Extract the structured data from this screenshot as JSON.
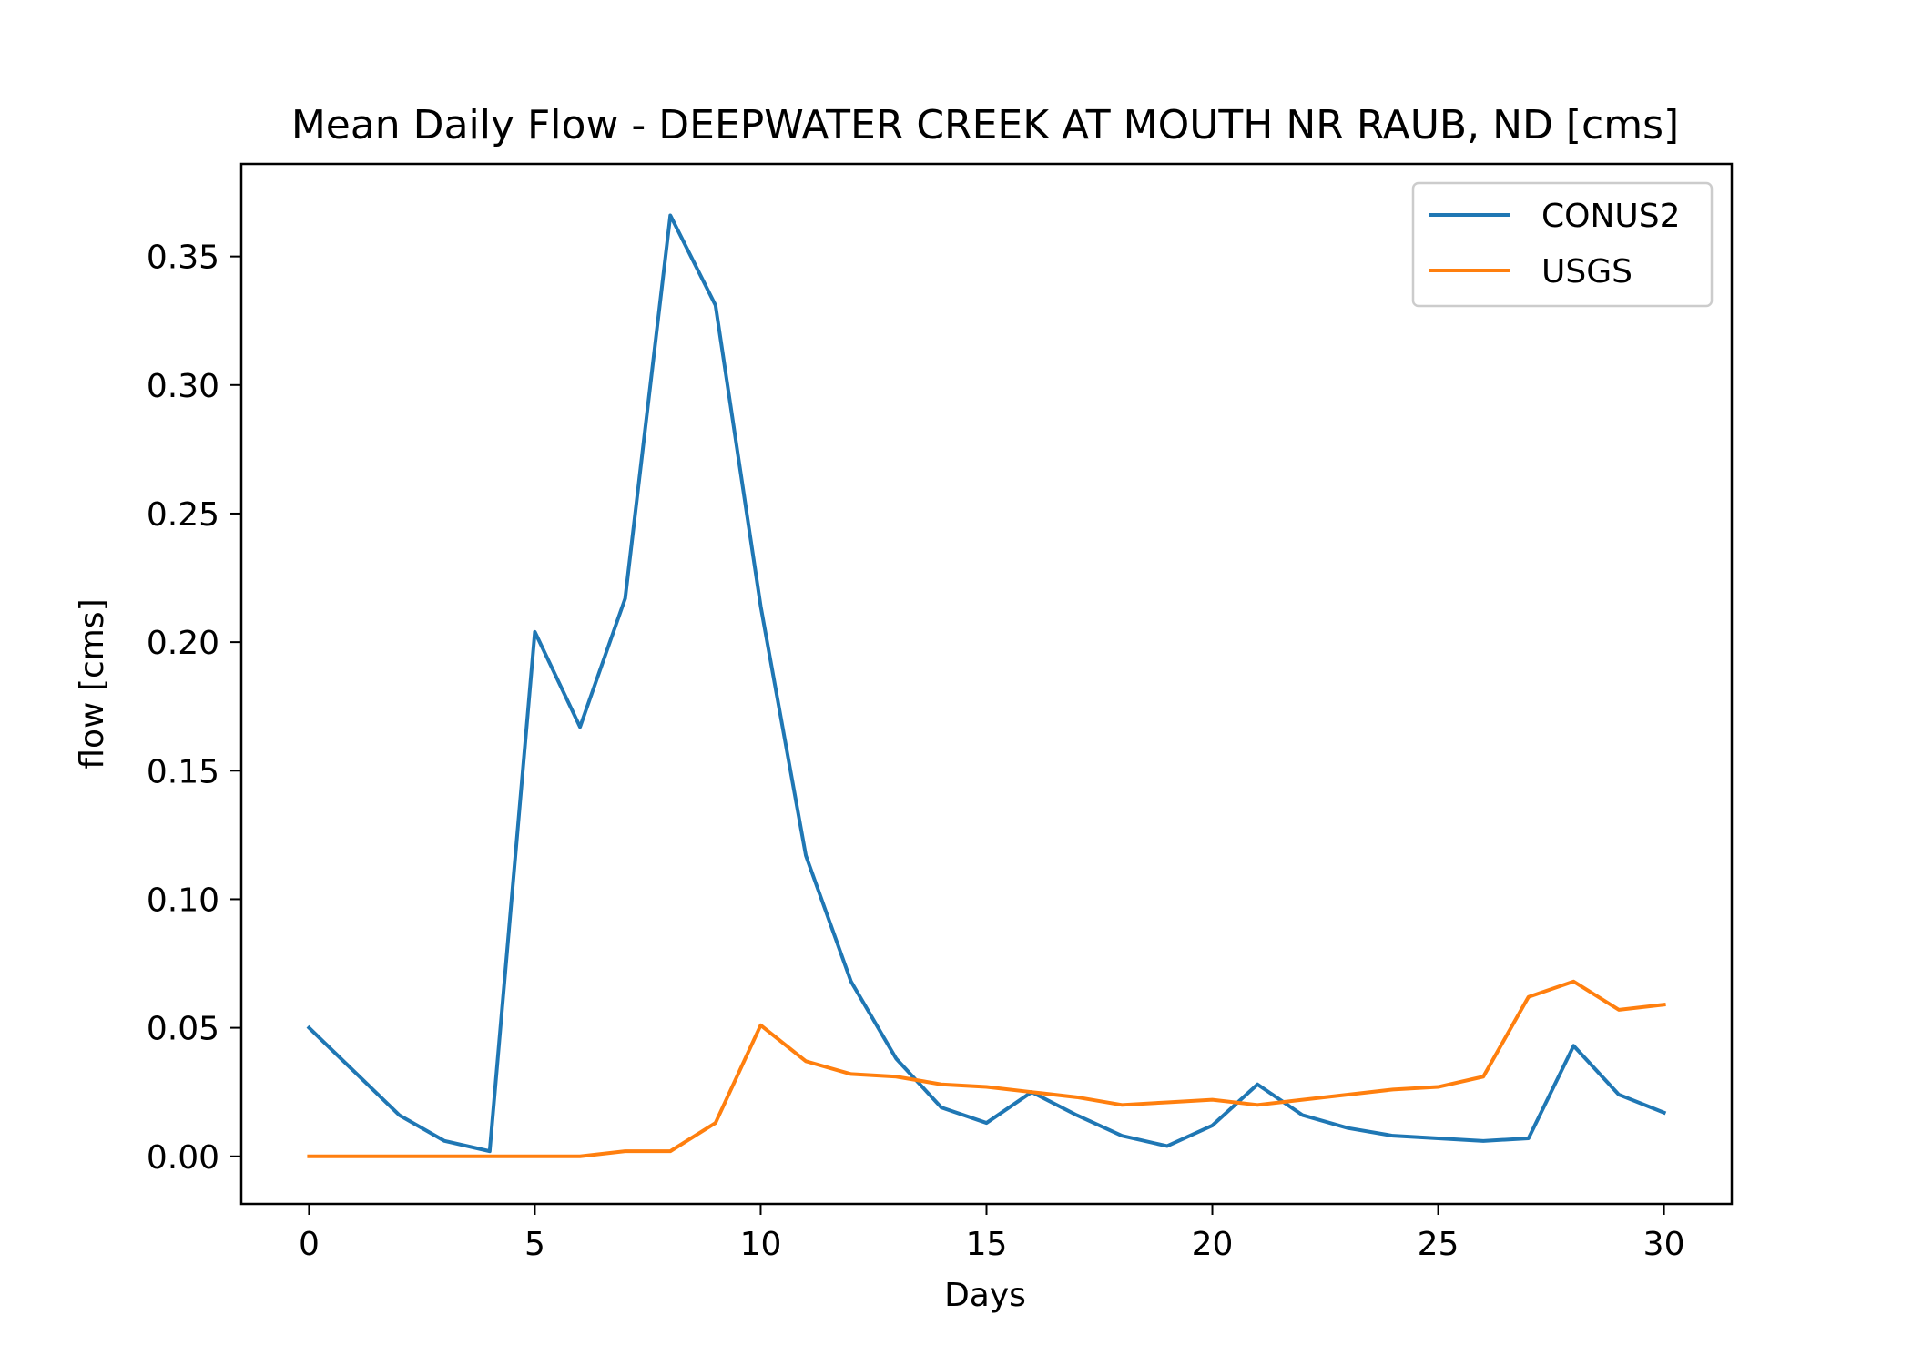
{
  "chart_data": {
    "type": "line",
    "title": "Mean Daily Flow - DEEPWATER CREEK AT MOUTH NR RAUB, ND [cms]",
    "xlabel": "Days",
    "ylabel": "flow [cms]",
    "xlim": [
      -1.5,
      31.5
    ],
    "ylim": [
      -0.0185,
      0.386
    ],
    "xticks": [
      0,
      5,
      10,
      15,
      20,
      25,
      30
    ],
    "xtick_labels": [
      "0",
      "5",
      "10",
      "15",
      "20",
      "25",
      "30"
    ],
    "yticks": [
      0.0,
      0.05,
      0.1,
      0.15,
      0.2,
      0.25,
      0.3,
      0.35
    ],
    "ytick_labels": [
      "0.00",
      "0.05",
      "0.10",
      "0.15",
      "0.20",
      "0.25",
      "0.30",
      "0.35"
    ],
    "grid": false,
    "legend_position": "top-right",
    "x": [
      0,
      1,
      2,
      3,
      4,
      5,
      6,
      7,
      8,
      9,
      10,
      11,
      12,
      13,
      14,
      15,
      16,
      17,
      18,
      19,
      20,
      21,
      22,
      23,
      24,
      25,
      26,
      27,
      28,
      29,
      30
    ],
    "series": [
      {
        "name": "CONUS2",
        "color": "#1f77b4",
        "values": [
          0.05,
          0.033,
          0.016,
          0.006,
          0.002,
          0.204,
          0.167,
          0.217,
          0.366,
          0.331,
          0.214,
          0.117,
          0.068,
          0.038,
          0.019,
          0.013,
          0.025,
          0.016,
          0.008,
          0.004,
          0.012,
          0.028,
          0.016,
          0.011,
          0.008,
          0.007,
          0.006,
          0.007,
          0.043,
          0.024,
          0.017
        ]
      },
      {
        "name": "USGS",
        "color": "#ff7f0e",
        "values": [
          0.0,
          0.0,
          0.0,
          0.0,
          0.0,
          0.0,
          0.0,
          0.002,
          0.002,
          0.013,
          0.051,
          0.037,
          0.032,
          0.031,
          0.028,
          0.027,
          0.025,
          0.023,
          0.02,
          0.021,
          0.022,
          0.02,
          0.022,
          0.024,
          0.026,
          0.027,
          0.031,
          0.062,
          0.068,
          0.057,
          0.059
        ]
      }
    ]
  }
}
